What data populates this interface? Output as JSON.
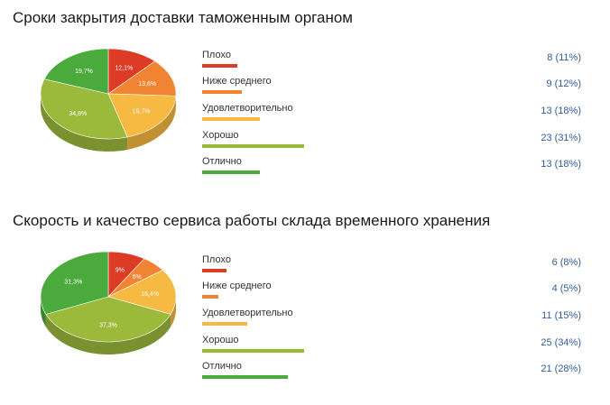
{
  "charts": [
    {
      "title": "Сроки закрытия доставки таможенным органом",
      "chart_data": {
        "type": "pie",
        "title": "Сроки закрытия доставки таможенным органом",
        "categories": [
          "Плохо",
          "Ниже среднего",
          "Удовлетворительно",
          "Хорошо",
          "Отлично"
        ],
        "values": [
          8,
          9,
          13,
          23,
          13
        ],
        "value_labels": [
          "8 (11%)",
          "9 (12%)",
          "13 (18%)",
          "23 (31%)",
          "13 (18%)"
        ],
        "slice_labels": [
          "12,1%",
          "13,6%",
          "19,7%",
          "34,8%",
          "19,7%"
        ],
        "colors": [
          "#dc3b26",
          "#f08432",
          "#f6b941",
          "#9bba3c",
          "#4aaa3c"
        ],
        "legend": "right"
      }
    },
    {
      "title": "Скорость и качество сервиса работы склада временного хранения",
      "chart_data": {
        "type": "pie",
        "title": "Скорость и качество сервиса работы склада временного хранения",
        "categories": [
          "Плохо",
          "Ниже среднего",
          "Удовлетворительно",
          "Хорошо",
          "Отлично"
        ],
        "values": [
          6,
          4,
          11,
          25,
          21
        ],
        "value_labels": [
          "6 (8%)",
          "4 (5%)",
          "11 (15%)",
          "25 (34%)",
          "21 (28%)"
        ],
        "slice_labels": [
          "9%",
          "6%",
          "16,4%",
          "37,3%",
          "31,3%"
        ],
        "colors": [
          "#dc3b26",
          "#f08432",
          "#f6b941",
          "#9bba3c",
          "#4aaa3c"
        ],
        "legend": "right"
      }
    }
  ]
}
